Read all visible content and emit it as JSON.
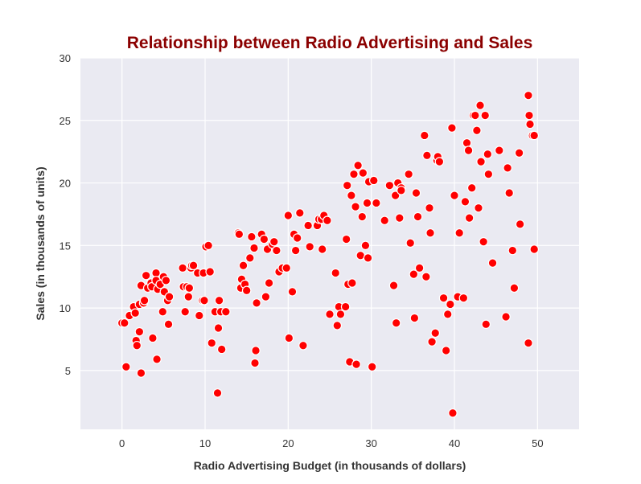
{
  "chart_data": {
    "type": "scatter",
    "title": "Relationship between Radio Advertising and Sales",
    "xlabel": "Radio Advertising Budget (in thousands of dollars)",
    "ylabel": "Sales (in thousands of units)",
    "xlim": [
      -5,
      55
    ],
    "ylim": [
      0.3,
      30
    ],
    "xticks": [
      "0",
      "10",
      "20",
      "30",
      "40",
      "50"
    ],
    "yticks": [
      "5",
      "10",
      "15",
      "20",
      "25",
      "30"
    ],
    "xtick_values": [
      0,
      10,
      20,
      30,
      40,
      50
    ],
    "ytick_values": [
      5,
      10,
      15,
      20,
      25,
      30
    ],
    "grid": true,
    "legend": "none",
    "colors": {
      "title": "#8b0000",
      "marker_fill": "#ff0000",
      "marker_edge": "#ffffff",
      "plot_background": "#eaeaf2",
      "grid": "#ffffff"
    },
    "points": [
      [
        0.0,
        8.8
      ],
      [
        0.3,
        8.8
      ],
      [
        0.5,
        5.3
      ],
      [
        0.9,
        9.4
      ],
      [
        1.4,
        10.1
      ],
      [
        1.6,
        9.6
      ],
      [
        1.7,
        7.4
      ],
      [
        1.8,
        7.0
      ],
      [
        2.1,
        8.1
      ],
      [
        2.1,
        10.3
      ],
      [
        2.3,
        11.8
      ],
      [
        2.3,
        4.8
      ],
      [
        2.6,
        10.4
      ],
      [
        2.7,
        10.6
      ],
      [
        2.9,
        12.6
      ],
      [
        3.1,
        11.6
      ],
      [
        3.5,
        12.0
      ],
      [
        3.6,
        11.7
      ],
      [
        3.7,
        7.6
      ],
      [
        4.1,
        12.8
      ],
      [
        4.1,
        12.2
      ],
      [
        4.2,
        5.9
      ],
      [
        4.3,
        11.5
      ],
      [
        4.6,
        11.9
      ],
      [
        4.9,
        9.7
      ],
      [
        5.0,
        12.5
      ],
      [
        5.1,
        11.3
      ],
      [
        5.3,
        12.2
      ],
      [
        5.5,
        10.6
      ],
      [
        5.6,
        8.7
      ],
      [
        5.7,
        10.9
      ],
      [
        7.3,
        13.2
      ],
      [
        7.4,
        11.7
      ],
      [
        7.6,
        9.7
      ],
      [
        7.8,
        11.7
      ],
      [
        8.0,
        10.9
      ],
      [
        8.1,
        11.6
      ],
      [
        8.3,
        13.2
      ],
      [
        8.4,
        13.4
      ],
      [
        8.6,
        13.4
      ],
      [
        9.1,
        12.8
      ],
      [
        9.3,
        9.4
      ],
      [
        9.7,
        10.6
      ],
      [
        9.8,
        12.8
      ],
      [
        9.9,
        10.6
      ],
      [
        10.1,
        14.9
      ],
      [
        10.4,
        15.0
      ],
      [
        10.6,
        12.9
      ],
      [
        10.8,
        7.2
      ],
      [
        11.2,
        9.7
      ],
      [
        11.5,
        3.2
      ],
      [
        11.6,
        8.4
      ],
      [
        11.7,
        10.6
      ],
      [
        11.9,
        9.7
      ],
      [
        12.0,
        6.7
      ],
      [
        12.5,
        9.7
      ],
      [
        14.0,
        16.0
      ],
      [
        14.1,
        15.9
      ],
      [
        14.3,
        11.6
      ],
      [
        14.4,
        12.3
      ],
      [
        14.6,
        13.4
      ],
      [
        14.8,
        11.9
      ],
      [
        15.0,
        11.4
      ],
      [
        15.4,
        14.0
      ],
      [
        15.6,
        15.7
      ],
      [
        15.9,
        14.8
      ],
      [
        16.0,
        5.6
      ],
      [
        16.1,
        6.6
      ],
      [
        16.2,
        10.4
      ],
      [
        16.8,
        15.9
      ],
      [
        17.1,
        15.5
      ],
      [
        17.3,
        10.9
      ],
      [
        17.5,
        14.7
      ],
      [
        17.7,
        12.0
      ],
      [
        18.1,
        15.1
      ],
      [
        18.3,
        15.3
      ],
      [
        18.6,
        14.6
      ],
      [
        18.9,
        12.9
      ],
      [
        19.3,
        13.2
      ],
      [
        19.8,
        13.2
      ],
      [
        20.0,
        17.4
      ],
      [
        20.1,
        7.6
      ],
      [
        20.5,
        11.3
      ],
      [
        20.7,
        15.9
      ],
      [
        20.9,
        14.6
      ],
      [
        21.1,
        15.6
      ],
      [
        21.4,
        17.6
      ],
      [
        21.8,
        7.0
      ],
      [
        22.4,
        16.6
      ],
      [
        22.6,
        14.9
      ],
      [
        23.5,
        16.6
      ],
      [
        23.7,
        17.1
      ],
      [
        24.0,
        17.1
      ],
      [
        24.1,
        14.7
      ],
      [
        24.3,
        17.4
      ],
      [
        24.7,
        17.0
      ],
      [
        25.0,
        9.5
      ],
      [
        25.7,
        12.8
      ],
      [
        25.9,
        8.6
      ],
      [
        26.1,
        10.1
      ],
      [
        26.3,
        9.5
      ],
      [
        26.9,
        10.1
      ],
      [
        27.0,
        15.5
      ],
      [
        27.1,
        19.8
      ],
      [
        27.2,
        11.9
      ],
      [
        27.4,
        5.7
      ],
      [
        27.6,
        19.0
      ],
      [
        27.7,
        12.0
      ],
      [
        27.9,
        20.7
      ],
      [
        28.1,
        18.1
      ],
      [
        28.2,
        5.5
      ],
      [
        28.4,
        21.4
      ],
      [
        28.7,
        14.2
      ],
      [
        28.9,
        17.3
      ],
      [
        29.0,
        20.8
      ],
      [
        29.3,
        15.0
      ],
      [
        29.5,
        18.4
      ],
      [
        29.6,
        14.0
      ],
      [
        29.7,
        20.1
      ],
      [
        30.1,
        5.3
      ],
      [
        30.3,
        20.2
      ],
      [
        30.6,
        18.4
      ],
      [
        31.6,
        17.0
      ],
      [
        32.2,
        19.8
      ],
      [
        32.7,
        11.8
      ],
      [
        32.9,
        19.0
      ],
      [
        33.0,
        8.8
      ],
      [
        33.2,
        20.0
      ],
      [
        33.4,
        17.2
      ],
      [
        33.6,
        19.6
      ],
      [
        33.6,
        19.4
      ],
      [
        34.5,
        20.7
      ],
      [
        34.7,
        15.2
      ],
      [
        35.1,
        12.7
      ],
      [
        35.2,
        9.2
      ],
      [
        35.4,
        19.2
      ],
      [
        35.6,
        17.3
      ],
      [
        35.8,
        13.2
      ],
      [
        36.4,
        23.8
      ],
      [
        36.6,
        12.5
      ],
      [
        36.7,
        22.2
      ],
      [
        37.0,
        18.0
      ],
      [
        37.1,
        16.0
      ],
      [
        37.3,
        7.3
      ],
      [
        37.7,
        8.0
      ],
      [
        37.9,
        21.8
      ],
      [
        38.0,
        22.1
      ],
      [
        38.2,
        21.7
      ],
      [
        38.7,
        10.8
      ],
      [
        39.0,
        6.6
      ],
      [
        39.2,
        9.5
      ],
      [
        39.5,
        10.3
      ],
      [
        39.7,
        24.4
      ],
      [
        39.8,
        1.6
      ],
      [
        40.0,
        19.0
      ],
      [
        40.4,
        10.9
      ],
      [
        40.6,
        16.0
      ],
      [
        41.1,
        10.8
      ],
      [
        41.3,
        18.5
      ],
      [
        41.5,
        23.2
      ],
      [
        41.7,
        22.6
      ],
      [
        41.8,
        17.2
      ],
      [
        42.1,
        19.6
      ],
      [
        42.3,
        25.4
      ],
      [
        42.5,
        25.4
      ],
      [
        42.7,
        24.2
      ],
      [
        42.9,
        18.0
      ],
      [
        43.1,
        26.2
      ],
      [
        43.2,
        21.7
      ],
      [
        43.5,
        15.3
      ],
      [
        43.7,
        25.4
      ],
      [
        43.8,
        8.7
      ],
      [
        44.0,
        22.3
      ],
      [
        44.1,
        20.7
      ],
      [
        44.6,
        13.6
      ],
      [
        45.4,
        22.6
      ],
      [
        46.2,
        9.3
      ],
      [
        46.4,
        21.2
      ],
      [
        46.6,
        19.2
      ],
      [
        47.0,
        14.6
      ],
      [
        47.2,
        11.6
      ],
      [
        47.8,
        22.4
      ],
      [
        47.9,
        16.7
      ],
      [
        48.9,
        7.2
      ],
      [
        48.9,
        27.0
      ],
      [
        49.0,
        25.4
      ],
      [
        49.1,
        24.7
      ],
      [
        49.4,
        23.8
      ],
      [
        49.6,
        23.8
      ],
      [
        49.6,
        14.7
      ]
    ]
  }
}
